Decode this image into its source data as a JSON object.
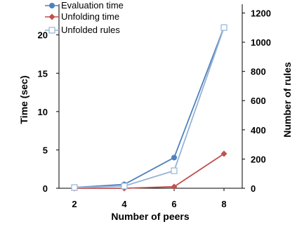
{
  "chart_data": {
    "type": "line",
    "x": [
      2,
      4,
      6,
      8
    ],
    "xlabel": "Number of peers",
    "ylabel": "Time (sec)",
    "y2label": "Number of rules",
    "ylim": [
      0,
      24
    ],
    "y2lim": [
      0,
      1260
    ],
    "yticks": [
      "0",
      "5",
      "10",
      "15",
      "20"
    ],
    "y2ticks": [
      "0",
      "200",
      "400",
      "600",
      "800",
      "1000",
      "1200"
    ],
    "xticks": [
      "2",
      "4",
      "6",
      "8"
    ],
    "grid": false,
    "legend_position": "top-left",
    "series": [
      {
        "name": "Evaluation time",
        "axis": "left",
        "values": [
          0.1,
          0.5,
          4.0,
          21.0
        ],
        "color": "#4f81bd",
        "marker": "circle"
      },
      {
        "name": "Unfolding time",
        "axis": "left",
        "values": [
          0.0,
          0.0,
          0.2,
          4.5
        ],
        "color": "#c0504d",
        "marker": "diamond"
      },
      {
        "name": "Unfolded rules",
        "axis": "right",
        "values": [
          5,
          15,
          120,
          1100
        ],
        "color": "#95b3d7",
        "marker": "open-square"
      }
    ]
  }
}
